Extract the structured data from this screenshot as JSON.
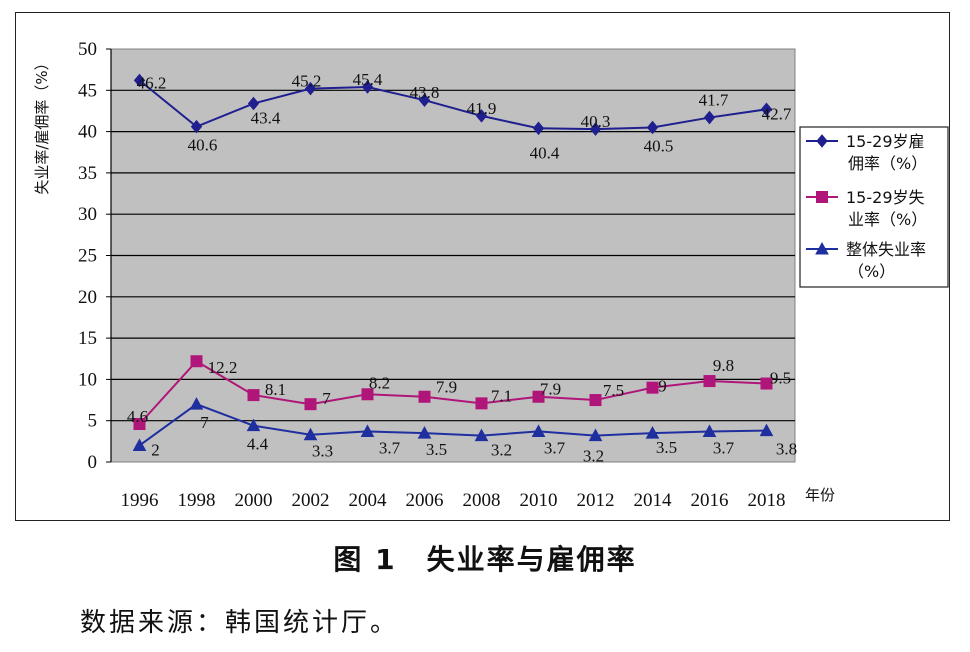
{
  "chart_data": {
    "type": "line",
    "categories": [
      "1996",
      "1998",
      "2000",
      "2002",
      "2004",
      "2006",
      "2008",
      "2010",
      "2012",
      "2014",
      "2016",
      "2018"
    ],
    "series": [
      {
        "name": "15-29岁雇佣率（%）",
        "legend_lines": [
          "15-29岁雇",
          "佣率（%）"
        ],
        "color": "#1f1f8f",
        "marker": "diamond",
        "values": [
          46.2,
          40.6,
          43.4,
          45.2,
          45.4,
          43.8,
          41.9,
          40.4,
          40.3,
          40.5,
          41.7,
          42.7
        ],
        "labels": [
          "46.2",
          "40.6",
          "43.4",
          "45.2",
          "45.4",
          "43.8",
          "41.9",
          "40.4",
          "40.3",
          "40.5",
          "41.7",
          "42.7"
        ]
      },
      {
        "name": "15-29岁失业率（%）",
        "legend_lines": [
          "15-29岁失",
          "业率（%）"
        ],
        "color": "#b0157a",
        "marker": "square",
        "values": [
          4.6,
          12.2,
          8.1,
          7,
          8.2,
          7.9,
          7.1,
          7.9,
          7.5,
          9,
          9.8,
          9.5
        ],
        "labels": [
          "4.6",
          "12.2",
          "8.1",
          "7",
          "8.2",
          "7.9",
          "7.1",
          "7.9",
          "7.5",
          "9",
          "9.8",
          "9.5"
        ]
      },
      {
        "name": "整体失业率（%）",
        "legend_lines": [
          "整体失业率",
          "（%）"
        ],
        "color": "#1f2f9f",
        "marker": "triangle",
        "values": [
          2,
          7,
          4.4,
          3.3,
          3.7,
          3.5,
          3.2,
          3.7,
          3.2,
          3.5,
          3.7,
          3.8
        ],
        "labels": [
          "2",
          "7",
          "4.4",
          "3.3",
          "3.7",
          "3.5",
          "3.2",
          "3.7",
          "3.2",
          "3.5",
          "3.7",
          "3.8"
        ]
      }
    ],
    "ylabel": "失业率/雇佣率（%）",
    "xlabel": "年份",
    "ylim": [
      0,
      50
    ],
    "yticks": [
      0,
      5,
      10,
      15,
      20,
      25,
      30,
      35,
      40,
      45,
      50
    ],
    "grid": true,
    "plot_background": "#c0c0c0",
    "legend_position": "right"
  },
  "caption": "图 1　失业率与雇佣率",
  "source": "数据来源：韩国统计厅。"
}
